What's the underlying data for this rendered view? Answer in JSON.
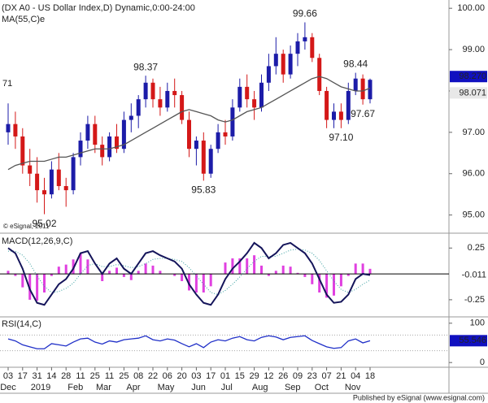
{
  "chart_data": [
    {
      "type": "candlestick",
      "title": "(DX A0 - US Dollar Index,D) Dynamic,0:00-24:00",
      "subtitle": "MA(55,C)e",
      "copyright": "© eSignal, 2011",
      "left_label": "71",
      "up_color": "#1c1ca8",
      "down_color": "#d41818",
      "ma_color": "#555555",
      "open": [
        97.0,
        97.2,
        96.9,
        96.2,
        96.0,
        95.6,
        95.5,
        96.1,
        95.7,
        95.6,
        96.4,
        96.8,
        97.2,
        96.7,
        96.4,
        96.9,
        96.6,
        97.3,
        97.4,
        97.8,
        98.2,
        97.8,
        97.6,
        98.0,
        97.9,
        97.3,
        96.6,
        96.8,
        96.0,
        96.6,
        97.0,
        96.9,
        97.6,
        98.1,
        97.8,
        97.6,
        98.2,
        98.6,
        98.9,
        98.4,
        98.9,
        99.2,
        99.3,
        98.8,
        98.0,
        97.3,
        97.5,
        97.3,
        98.0,
        98.3,
        97.8
      ],
      "high": [
        97.7,
        97.5,
        97.1,
        96.6,
        96.4,
        95.9,
        96.3,
        96.5,
        95.9,
        96.5,
        97.0,
        97.4,
        97.4,
        96.9,
        97.0,
        97.2,
        97.5,
        97.7,
        97.9,
        98.37,
        98.3,
        98.1,
        98.2,
        98.3,
        98.0,
        97.5,
        96.9,
        97.0,
        96.7,
        97.2,
        97.3,
        97.8,
        98.3,
        98.4,
        98.0,
        98.4,
        98.9,
        99.3,
        99.0,
        99.1,
        99.4,
        99.66,
        99.4,
        98.9,
        98.1,
        97.7,
        97.7,
        98.2,
        98.44,
        98.4,
        98.3
      ],
      "low": [
        96.7,
        96.6,
        96.0,
        95.7,
        95.3,
        95.02,
        95.4,
        95.6,
        95.2,
        95.5,
        96.2,
        96.6,
        96.5,
        96.2,
        96.3,
        96.5,
        96.5,
        97.0,
        97.1,
        97.6,
        97.6,
        97.4,
        97.5,
        97.6,
        97.2,
        96.4,
        96.2,
        95.83,
        95.9,
        96.5,
        96.7,
        96.8,
        97.5,
        97.6,
        97.3,
        97.5,
        98.0,
        98.4,
        98.2,
        98.3,
        98.6,
        99.0,
        98.7,
        97.9,
        97.1,
        97.1,
        97.1,
        97.2,
        97.9,
        97.67,
        97.7
      ],
      "close": [
        97.2,
        96.9,
        96.2,
        96.0,
        95.6,
        95.5,
        96.1,
        95.7,
        95.6,
        96.4,
        96.8,
        97.2,
        96.7,
        96.4,
        96.9,
        96.6,
        97.3,
        97.4,
        97.8,
        98.2,
        97.8,
        97.6,
        98.0,
        97.9,
        97.3,
        96.6,
        96.8,
        96.0,
        96.6,
        97.0,
        96.9,
        97.6,
        98.1,
        97.8,
        97.6,
        98.2,
        98.6,
        98.9,
        98.4,
        98.9,
        99.2,
        99.3,
        98.8,
        98.0,
        97.3,
        97.5,
        97.3,
        98.0,
        98.3,
        97.8,
        98.27
      ],
      "close_label": "98.270",
      "ma": [
        96.1,
        96.2,
        96.25,
        96.3,
        96.3,
        96.3,
        96.35,
        96.4,
        96.4,
        96.45,
        96.5,
        96.55,
        96.6,
        96.6,
        96.6,
        96.65,
        96.7,
        96.8,
        96.9,
        97.0,
        97.1,
        97.2,
        97.3,
        97.4,
        97.5,
        97.55,
        97.5,
        97.45,
        97.4,
        97.3,
        97.25,
        97.3,
        97.4,
        97.5,
        97.55,
        97.6,
        97.7,
        97.8,
        97.9,
        98.0,
        98.1,
        98.2,
        98.3,
        98.35,
        98.3,
        98.2,
        98.1,
        98.05,
        98.0,
        98.0,
        98.071
      ],
      "ma_label": "98.071",
      "annotations": [
        {
          "text": "95.02",
          "index": 5,
          "position": "below"
        },
        {
          "text": "98.37",
          "index": 19,
          "position": "above"
        },
        {
          "text": "95.83",
          "index": 27,
          "position": "below"
        },
        {
          "text": "99.66",
          "index": 41,
          "position": "above"
        },
        {
          "text": "97.10",
          "index": 46,
          "position": "below"
        },
        {
          "text": "98.44",
          "index": 48,
          "position": "above"
        },
        {
          "text": "97.67",
          "index": 49,
          "position": "below"
        }
      ],
      "ylim": [
        94.6,
        100.2
      ],
      "yticks": [
        {
          "value": 100,
          "label": "100.00"
        },
        {
          "value": 99,
          "label": "99.00"
        },
        {
          "value": 98,
          "label": "98.00"
        },
        {
          "value": 97,
          "label": "97.00"
        },
        {
          "value": 96,
          "label": "96.00"
        },
        {
          "value": 95,
          "label": "95.00"
        }
      ]
    },
    {
      "type": "macd",
      "title": "MACD(12,26,9,C)",
      "macd": [
        0.25,
        0.2,
        0.05,
        -0.15,
        -0.28,
        -0.3,
        -0.2,
        -0.1,
        -0.05,
        0.05,
        0.2,
        0.22,
        0.1,
        0.0,
        0.1,
        0.15,
        0.05,
        0.0,
        0.1,
        0.2,
        0.22,
        0.18,
        0.15,
        0.12,
        0.05,
        -0.1,
        -0.2,
        -0.28,
        -0.3,
        -0.2,
        -0.05,
        0.05,
        0.12,
        0.2,
        0.3,
        0.25,
        0.15,
        0.2,
        0.28,
        0.3,
        0.25,
        0.2,
        0.1,
        -0.05,
        -0.2,
        -0.28,
        -0.27,
        -0.2,
        -0.05,
        0.0,
        -0.011
      ],
      "signal": [
        0.22,
        0.22,
        0.18,
        0.1,
        -0.02,
        -0.12,
        -0.18,
        -0.17,
        -0.14,
        -0.09,
        0.0,
        0.08,
        0.1,
        0.07,
        0.07,
        0.09,
        0.08,
        0.06,
        0.07,
        0.1,
        0.14,
        0.15,
        0.15,
        0.14,
        0.12,
        0.06,
        -0.02,
        -0.1,
        -0.18,
        -0.2,
        -0.16,
        -0.1,
        -0.03,
        0.05,
        0.12,
        0.17,
        0.17,
        0.17,
        0.2,
        0.23,
        0.24,
        0.23,
        0.2,
        0.13,
        0.03,
        -0.07,
        -0.15,
        -0.18,
        -0.15,
        -0.1,
        -0.06
      ],
      "histogram": [
        0.03,
        -0.02,
        -0.13,
        -0.25,
        -0.26,
        -0.18,
        -0.02,
        0.07,
        0.09,
        0.14,
        0.2,
        0.14,
        0.0,
        -0.07,
        0.03,
        0.06,
        -0.03,
        -0.06,
        0.03,
        0.1,
        0.08,
        0.03,
        0.0,
        -0.02,
        -0.07,
        -0.16,
        -0.18,
        -0.18,
        -0.12,
        0.0,
        0.11,
        0.15,
        0.15,
        0.15,
        0.18,
        0.08,
        -0.02,
        0.03,
        0.08,
        0.07,
        0.01,
        -0.03,
        -0.1,
        -0.18,
        -0.23,
        -0.21,
        -0.12,
        -0.02,
        0.1,
        0.1,
        0.049
      ],
      "last_label": "-0.011",
      "macd_color": "#14145a",
      "signal_color": "#3aa0a0",
      "histogram_color": "#e040e0",
      "ylim": [
        -0.4,
        0.37
      ],
      "yticks": [
        0.25,
        -0.25
      ]
    },
    {
      "type": "rsi",
      "title": "RSI(14,C)",
      "values": [
        60,
        55,
        45,
        40,
        35,
        35,
        48,
        45,
        42,
        52,
        60,
        62,
        52,
        47,
        55,
        52,
        58,
        60,
        62,
        68,
        58,
        55,
        60,
        57,
        48,
        40,
        48,
        38,
        52,
        58,
        55,
        62,
        66,
        58,
        55,
        64,
        68,
        65,
        58,
        64,
        66,
        68,
        56,
        48,
        40,
        36,
        38,
        55,
        60,
        50,
        55.546
      ],
      "last_label": "55.546",
      "color": "#1f2fc8",
      "levels": [
        70,
        30
      ],
      "ylim": [
        -12,
        112
      ],
      "yticks": [
        100,
        0
      ],
      "xticks": [
        {
          "value": 0,
          "label": "03"
        },
        {
          "value": 2,
          "label": "17"
        },
        {
          "value": 4,
          "label": "31"
        },
        {
          "value": 6,
          "label": "14"
        },
        {
          "value": 8,
          "label": "28"
        },
        {
          "value": 10,
          "label": "11"
        },
        {
          "value": 12,
          "label": "25"
        },
        {
          "value": 14,
          "label": "11"
        },
        {
          "value": 16,
          "label": "25"
        },
        {
          "value": 18,
          "label": "08"
        },
        {
          "value": 20,
          "label": "22"
        },
        {
          "value": 22,
          "label": "06"
        },
        {
          "value": 24,
          "label": "20"
        },
        {
          "value": 26,
          "label": "03"
        },
        {
          "value": 28,
          "label": "17"
        },
        {
          "value": 30,
          "label": "01"
        },
        {
          "value": 32,
          "label": "15"
        },
        {
          "value": 34,
          "label": "29"
        },
        {
          "value": 36,
          "label": "12"
        },
        {
          "value": 38,
          "label": "26"
        },
        {
          "value": 40,
          "label": "09"
        },
        {
          "value": 42,
          "label": "23"
        },
        {
          "value": 44,
          "label": "07"
        },
        {
          "value": 46,
          "label": "21"
        },
        {
          "value": 48,
          "label": "04"
        },
        {
          "value": 50,
          "label": "18"
        }
      ],
      "months": [
        {
          "value": 0,
          "label": "Dec"
        },
        {
          "value": 4.5,
          "label": "2019"
        },
        {
          "value": 9.3,
          "label": "Feb"
        },
        {
          "value": 13.2,
          "label": "Mar"
        },
        {
          "value": 17.3,
          "label": "Apr"
        },
        {
          "value": 21.8,
          "label": "May"
        },
        {
          "value": 26.3,
          "label": "Jun"
        },
        {
          "value": 30.2,
          "label": "Jul"
        },
        {
          "value": 34.8,
          "label": "Aug"
        },
        {
          "value": 39.3,
          "label": "Sep"
        },
        {
          "value": 43.3,
          "label": "Oct"
        },
        {
          "value": 47.6,
          "label": "Nov"
        }
      ],
      "footer": "Published by eSignal (www.esignal.com)"
    }
  ]
}
